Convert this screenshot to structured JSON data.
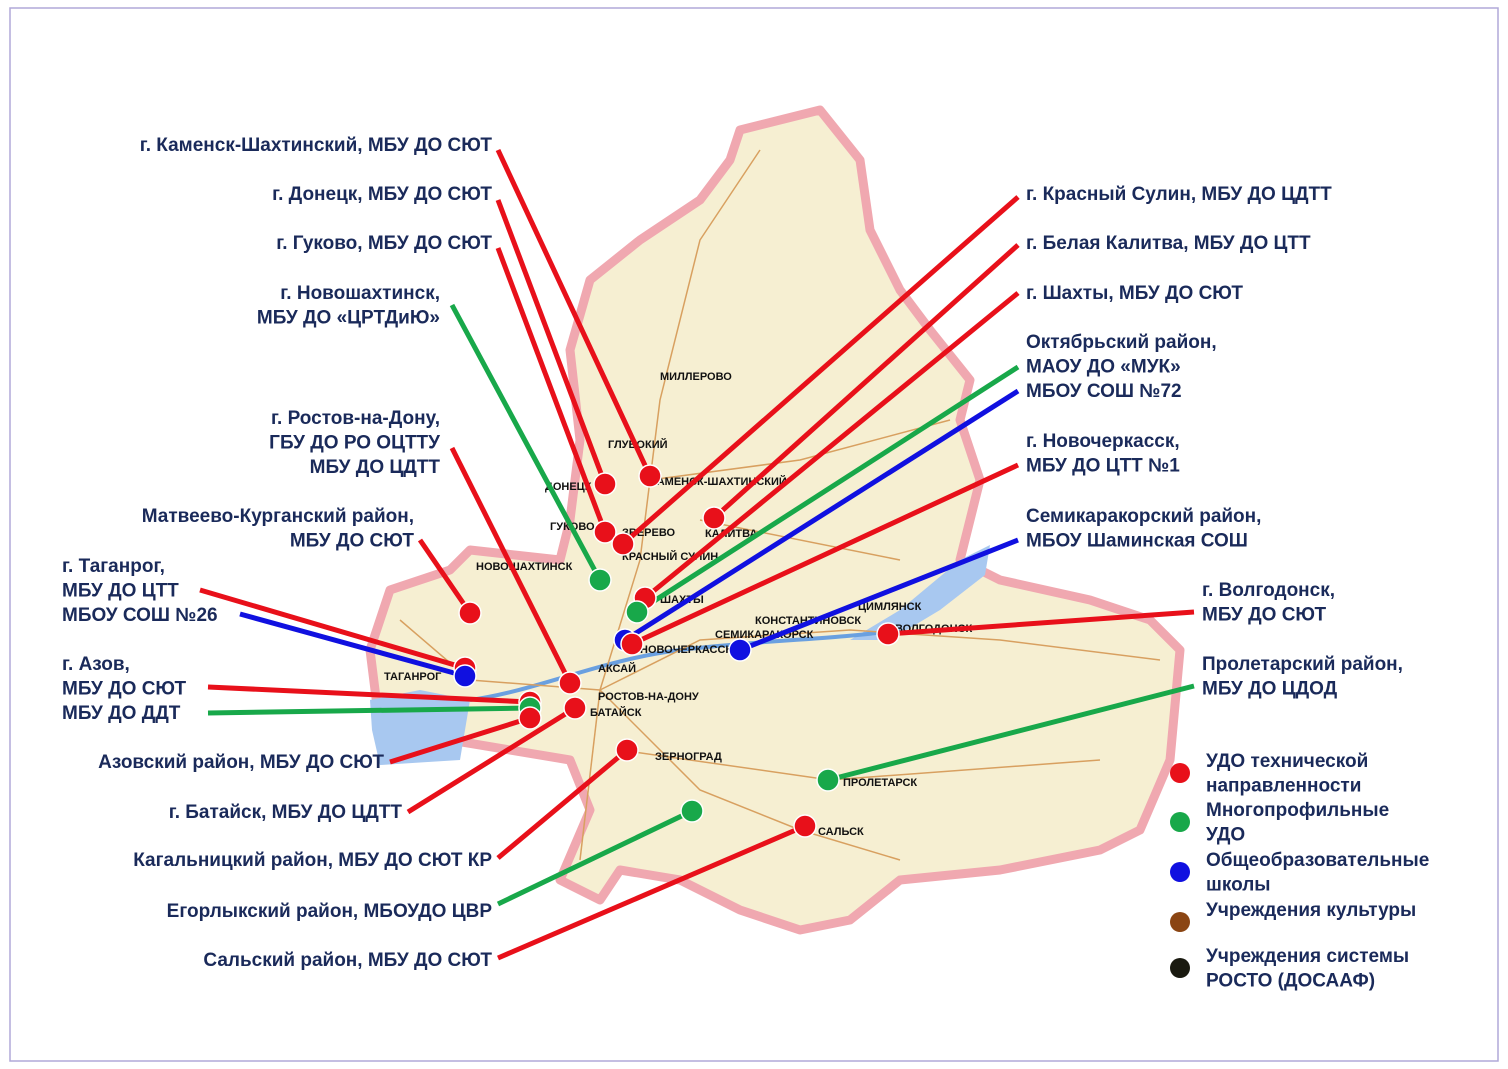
{
  "callouts": [
    {
      "lines": [
        "г. Каменск-Шахтинский, МБУ ДО СЮТ"
      ],
      "colors": [
        "#e8101a"
      ]
    },
    {
      "lines": [
        "г. Донецк, МБУ ДО СЮТ"
      ],
      "colors": [
        "#e8101a"
      ]
    },
    {
      "lines": [
        "г. Гуково, МБУ ДО СЮТ"
      ],
      "colors": [
        "#e8101a"
      ]
    },
    {
      "lines": [
        "г. Новошахтинск,",
        "МБУ ДО «ЦРТДиЮ»"
      ],
      "colors": [
        "#18a84a"
      ]
    },
    {
      "lines": [
        "г. Ростов-на-Дону,",
        "ГБУ ДО РО ОЦТТУ",
        "МБУ ДО ЦДТТ"
      ],
      "colors": [
        "#e8101a"
      ]
    },
    {
      "lines": [
        "Матвеево-Курганский район,",
        "МБУ ДО СЮТ"
      ],
      "colors": [
        "#e8101a"
      ]
    },
    {
      "lines": [
        "г. Таганрог,",
        "МБУ ДО ЦТТ",
        "МБОУ СОШ №26"
      ],
      "colors": [
        "#e8101a",
        "#1010e0"
      ]
    },
    {
      "lines": [
        "г. Азов,",
        "МБУ ДО СЮТ",
        "МБУ ДО ДДТ"
      ],
      "colors": [
        "#e8101a",
        "#18a84a"
      ]
    },
    {
      "lines": [
        "Азовский район, МБУ ДО СЮТ"
      ],
      "colors": [
        "#e8101a"
      ]
    },
    {
      "lines": [
        "г. Батайск, МБУ ДО ЦДТТ"
      ],
      "colors": [
        "#e8101a"
      ]
    },
    {
      "lines": [
        "Кагальницкий район, МБУ ДО СЮТ КР"
      ],
      "colors": [
        "#e8101a"
      ]
    },
    {
      "lines": [
        "Егорлыкский район, МБОУДО ЦВР"
      ],
      "colors": [
        "#18a84a"
      ]
    },
    {
      "lines": [
        "Сальский район, МБУ ДО СЮТ"
      ],
      "colors": [
        "#e8101a"
      ]
    },
    {
      "lines": [
        "г. Красный Сулин, МБУ ДО ЦДТТ"
      ],
      "colors": [
        "#e8101a"
      ]
    },
    {
      "lines": [
        "г. Белая Калитва, МБУ ДО ЦТТ"
      ],
      "colors": [
        "#e8101a"
      ]
    },
    {
      "lines": [
        "г. Шахты, МБУ ДО СЮТ"
      ],
      "colors": [
        "#e8101a"
      ]
    },
    {
      "lines": [
        "Октябрьский район,",
        "МАОУ ДО «МУК»",
        "МБОУ СОШ №72"
      ],
      "colors": [
        "#18a84a",
        "#1010e0"
      ]
    },
    {
      "lines": [
        "г. Новочеркасск,",
        "МБУ ДО ЦТТ №1"
      ],
      "colors": [
        "#e8101a"
      ]
    },
    {
      "lines": [
        "Семикаракорский район,",
        "МБОУ Шаминская СОШ"
      ],
      "colors": [
        "#1010e0"
      ]
    },
    {
      "lines": [
        "г. Волгодонск,",
        "МБУ ДО СЮТ"
      ],
      "colors": [
        "#e8101a"
      ]
    },
    {
      "lines": [
        "Пролетарский район,",
        "МБУ ДО ЦДОД"
      ],
      "colors": [
        "#18a84a"
      ]
    }
  ],
  "legend": [
    {
      "lines": [
        "УДО технической",
        "направленности"
      ],
      "color": "#e8101a"
    },
    {
      "lines": [
        "Многопрофильные",
        "УДО"
      ],
      "color": "#18a84a"
    },
    {
      "lines": [
        "Общеобразовательные",
        "школы"
      ],
      "color": "#1010e0"
    },
    {
      "lines": [
        "Учреждения культуры"
      ],
      "color": "#8b4513"
    },
    {
      "lines": [
        "Учреждения системы",
        "РОСТО (ДОСААФ)"
      ],
      "color": "#1a1a10"
    }
  ],
  "map": {
    "places": [
      "РОСТОВ-НА-ДОНУ",
      "БАТАЙСК",
      "НОВОШАХТИНСК",
      "ТАГАНРОГ",
      "ШАХТЫ",
      "НОВОЧЕРКАССК",
      "МИЛЛЕРОВО",
      "ВОЛГОДОНСК",
      "ПРОЛЕТАРСК",
      "САЛЬСК",
      "ЗЕРНОГРАД",
      "СЕМИКАРАКОРСК",
      "КАМЕНСК-ШАХТИНСКИЙ",
      "ДОНЕЦК",
      "ГУКОВО",
      "ЗВЕРЕВО",
      "КРАСНЫЙ СУЛИН",
      "КАЛИТВА",
      "АКСАЙ",
      "ГЛУБОКИЙ",
      "ЦИМЛЯНСК",
      "КОНСТАНТИНОВСК"
    ]
  }
}
